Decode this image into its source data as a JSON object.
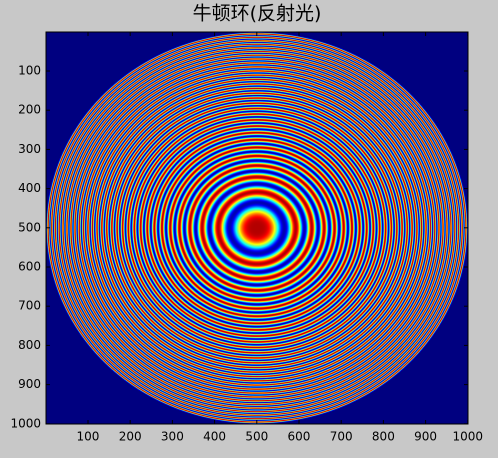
{
  "chart_data": {
    "type": "image",
    "title": "牛顿环(反射光)",
    "xlim": [
      0.5,
      1000.5
    ],
    "ylim": [
      0.5,
      1000.5
    ],
    "xticks": [
      100,
      200,
      300,
      400,
      500,
      600,
      700,
      800,
      900,
      1000
    ],
    "yticks": [
      100,
      200,
      300,
      400,
      500,
      600,
      700,
      800,
      900,
      1000
    ],
    "y_reversed": true,
    "colormap": "jet"
  }
}
